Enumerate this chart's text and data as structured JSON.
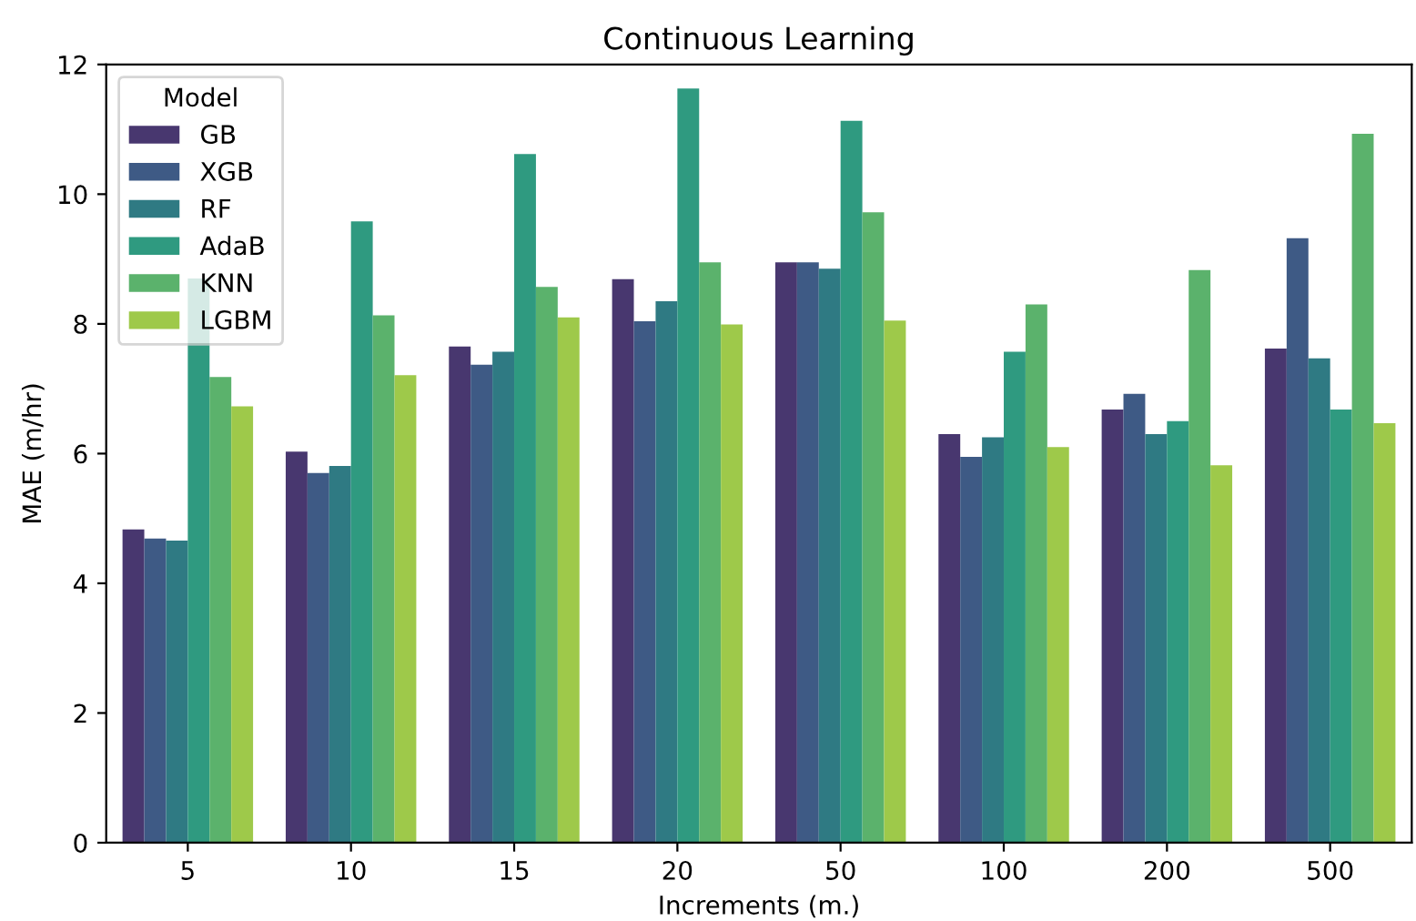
{
  "chart_data": {
    "type": "bar",
    "title": "Continuous Learning",
    "xlabel": "Increments (m.)",
    "ylabel": "MAE (m/hr)",
    "legend_title": "Model",
    "legend": "top left",
    "grid": false,
    "categories": [
      "5",
      "10",
      "15",
      "20",
      "50",
      "100",
      "200",
      "500"
    ],
    "ylim": [
      0,
      12
    ],
    "yticks": [
      0,
      2,
      4,
      6,
      8,
      10,
      12
    ],
    "series": [
      {
        "name": "GB",
        "color": "#48376f",
        "values": [
          4.83,
          6.03,
          7.65,
          8.69,
          8.95,
          6.3,
          6.68,
          7.62
        ]
      },
      {
        "name": "XGB",
        "color": "#3e5a85",
        "values": [
          4.69,
          5.7,
          7.37,
          8.04,
          8.95,
          5.95,
          6.92,
          9.32
        ]
      },
      {
        "name": "RF",
        "color": "#2f7a83",
        "values": [
          4.66,
          5.81,
          7.57,
          8.35,
          8.85,
          6.25,
          6.3,
          7.47
        ]
      },
      {
        "name": "AdaB",
        "color": "#2f9a80",
        "values": [
          8.7,
          9.58,
          10.62,
          11.63,
          11.13,
          7.57,
          6.5,
          6.68
        ]
      },
      {
        "name": "KNN",
        "color": "#5bb26c",
        "values": [
          7.18,
          8.13,
          8.57,
          8.95,
          9.72,
          8.3,
          8.83,
          10.93
        ]
      },
      {
        "name": "LGBM",
        "color": "#9ec94a",
        "values": [
          6.73,
          7.21,
          8.1,
          7.99,
          8.05,
          6.1,
          5.82,
          6.47
        ]
      }
    ]
  }
}
